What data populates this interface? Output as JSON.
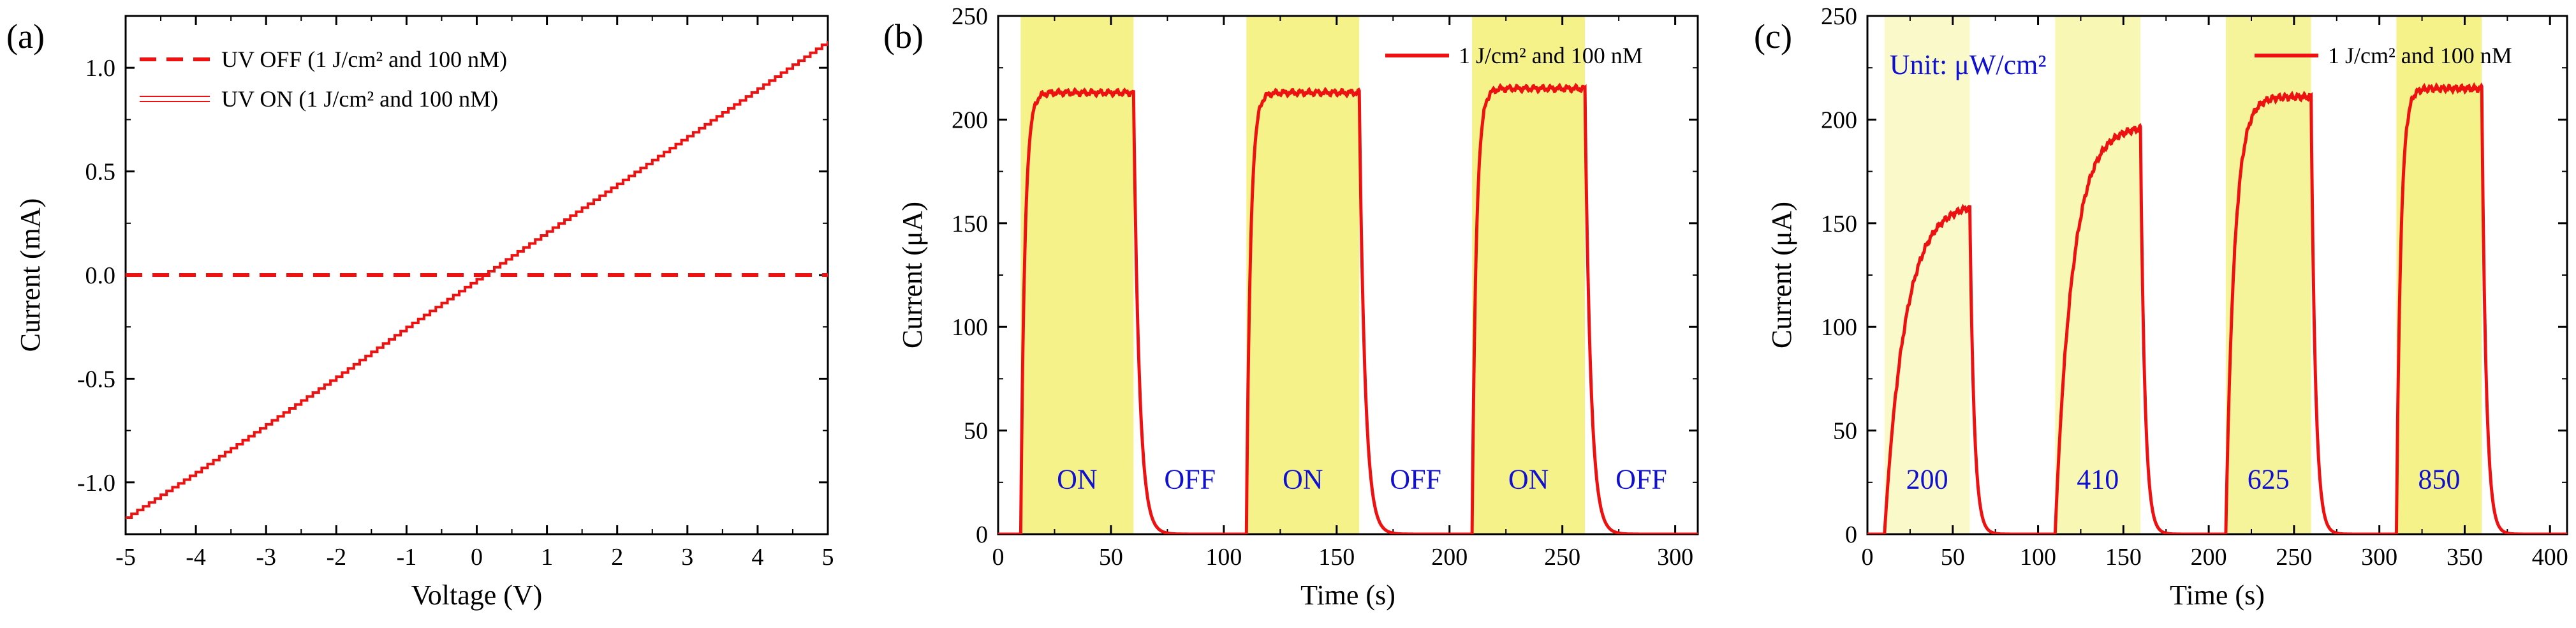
{
  "chart_data": [
    {
      "panel_label": "(a)",
      "type": "line",
      "xlabel": "Voltage (V)",
      "ylabel": "Current (mA)",
      "xlim": [
        -5,
        5
      ],
      "ylim": [
        -1.25,
        1.25
      ],
      "xticks": [
        "-5",
        "-4",
        "-3",
        "-2",
        "-1",
        "0",
        "1",
        "2",
        "3",
        "4",
        "5"
      ],
      "yticks": [
        "-1.0",
        "-0.5",
        "0.0",
        "0.5",
        "1.0"
      ],
      "legend_position": "top-left",
      "series": [
        {
          "name": "UV OFF (1 J/cm² and 100 nM)",
          "style": "dashed",
          "color": "#ee1111",
          "x": [
            -5,
            5
          ],
          "y": [
            0.0,
            0.0
          ]
        },
        {
          "name": "UV ON (1 J/cm² and 100 nM)",
          "style": "stepped",
          "color": "#ee1111",
          "x": [
            -5,
            -4,
            -3,
            -2,
            -1,
            0,
            1,
            2,
            3,
            4,
            5
          ],
          "y": [
            -1.17,
            -0.95,
            -0.72,
            -0.49,
            -0.25,
            -0.02,
            0.21,
            0.44,
            0.67,
            0.9,
            1.13
          ]
        }
      ]
    },
    {
      "panel_label": "(b)",
      "type": "line",
      "xlabel": "Time (s)",
      "ylabel": "Current (μA)",
      "xlim": [
        0,
        310
      ],
      "ylim": [
        0,
        250
      ],
      "xticks": [
        "0",
        "50",
        "100",
        "150",
        "200",
        "250",
        "300"
      ],
      "yticks": [
        "0",
        "50",
        "100",
        "150",
        "200",
        "250"
      ],
      "legend_position": "top-right",
      "highlight_color": "#f5f28a",
      "highlights": [
        {
          "start": 10,
          "end": 60,
          "opacity": 1
        },
        {
          "start": 110,
          "end": 160,
          "opacity": 1
        },
        {
          "start": 210,
          "end": 260,
          "opacity": 1
        }
      ],
      "annotations": [
        {
          "text": "ON",
          "x": 35,
          "y": 22
        },
        {
          "text": "OFF",
          "x": 85,
          "y": 22
        },
        {
          "text": "ON",
          "x": 135,
          "y": 22
        },
        {
          "text": "OFF",
          "x": 185,
          "y": 22
        },
        {
          "text": "ON",
          "x": 235,
          "y": 22
        },
        {
          "text": "OFF",
          "x": 285,
          "y": 22
        }
      ],
      "series": [
        {
          "name": "1 J/cm² and 100 nM",
          "color": "#ee1111",
          "pulses": [
            {
              "on": 10,
              "off": 60,
              "peak": 213,
              "tau": 1.8
            },
            {
              "on": 110,
              "off": 160,
              "peak": 213,
              "tau": 1.8
            },
            {
              "on": 210,
              "off": 260,
              "peak": 215,
              "tau": 1.8
            }
          ],
          "decay_tau": 2.5,
          "t_end": 310
        }
      ]
    },
    {
      "panel_label": "(c)",
      "type": "line",
      "xlabel": "Time (s)",
      "ylabel": "Current (μA)",
      "xlim": [
        0,
        410
      ],
      "ylim": [
        0,
        250
      ],
      "xticks": [
        "0",
        "50",
        "100",
        "150",
        "200",
        "250",
        "300",
        "350",
        "400"
      ],
      "yticks": [
        "0",
        "50",
        "100",
        "150",
        "200",
        "250"
      ],
      "legend_position": "top-right",
      "unit_label": "Unit: μW/cm²",
      "highlight_color": "#f5f28a",
      "highlights": [
        {
          "start": 10,
          "end": 60,
          "opacity": 0.45
        },
        {
          "start": 110,
          "end": 160,
          "opacity": 0.65
        },
        {
          "start": 210,
          "end": 260,
          "opacity": 0.85
        },
        {
          "start": 310,
          "end": 360,
          "opacity": 1
        }
      ],
      "annotations": [
        {
          "text": "200",
          "x": 35,
          "y": 22
        },
        {
          "text": "410",
          "x": 135,
          "y": 22
        },
        {
          "text": "625",
          "x": 235,
          "y": 22
        },
        {
          "text": "850",
          "x": 335,
          "y": 22
        }
      ],
      "series": [
        {
          "name": "1 J/cm² and 100 nM",
          "color": "#ee1111",
          "pulses": [
            {
              "on": 10,
              "off": 60,
              "peak": 160,
              "tau": 12
            },
            {
              "on": 110,
              "off": 160,
              "peak": 197,
              "tau": 10
            },
            {
              "on": 210,
              "off": 260,
              "peak": 211,
              "tau": 5
            },
            {
              "on": 310,
              "off": 360,
              "peak": 215,
              "tau": 2.5
            }
          ],
          "decay_tau": 2.5,
          "t_end": 410
        }
      ]
    }
  ]
}
